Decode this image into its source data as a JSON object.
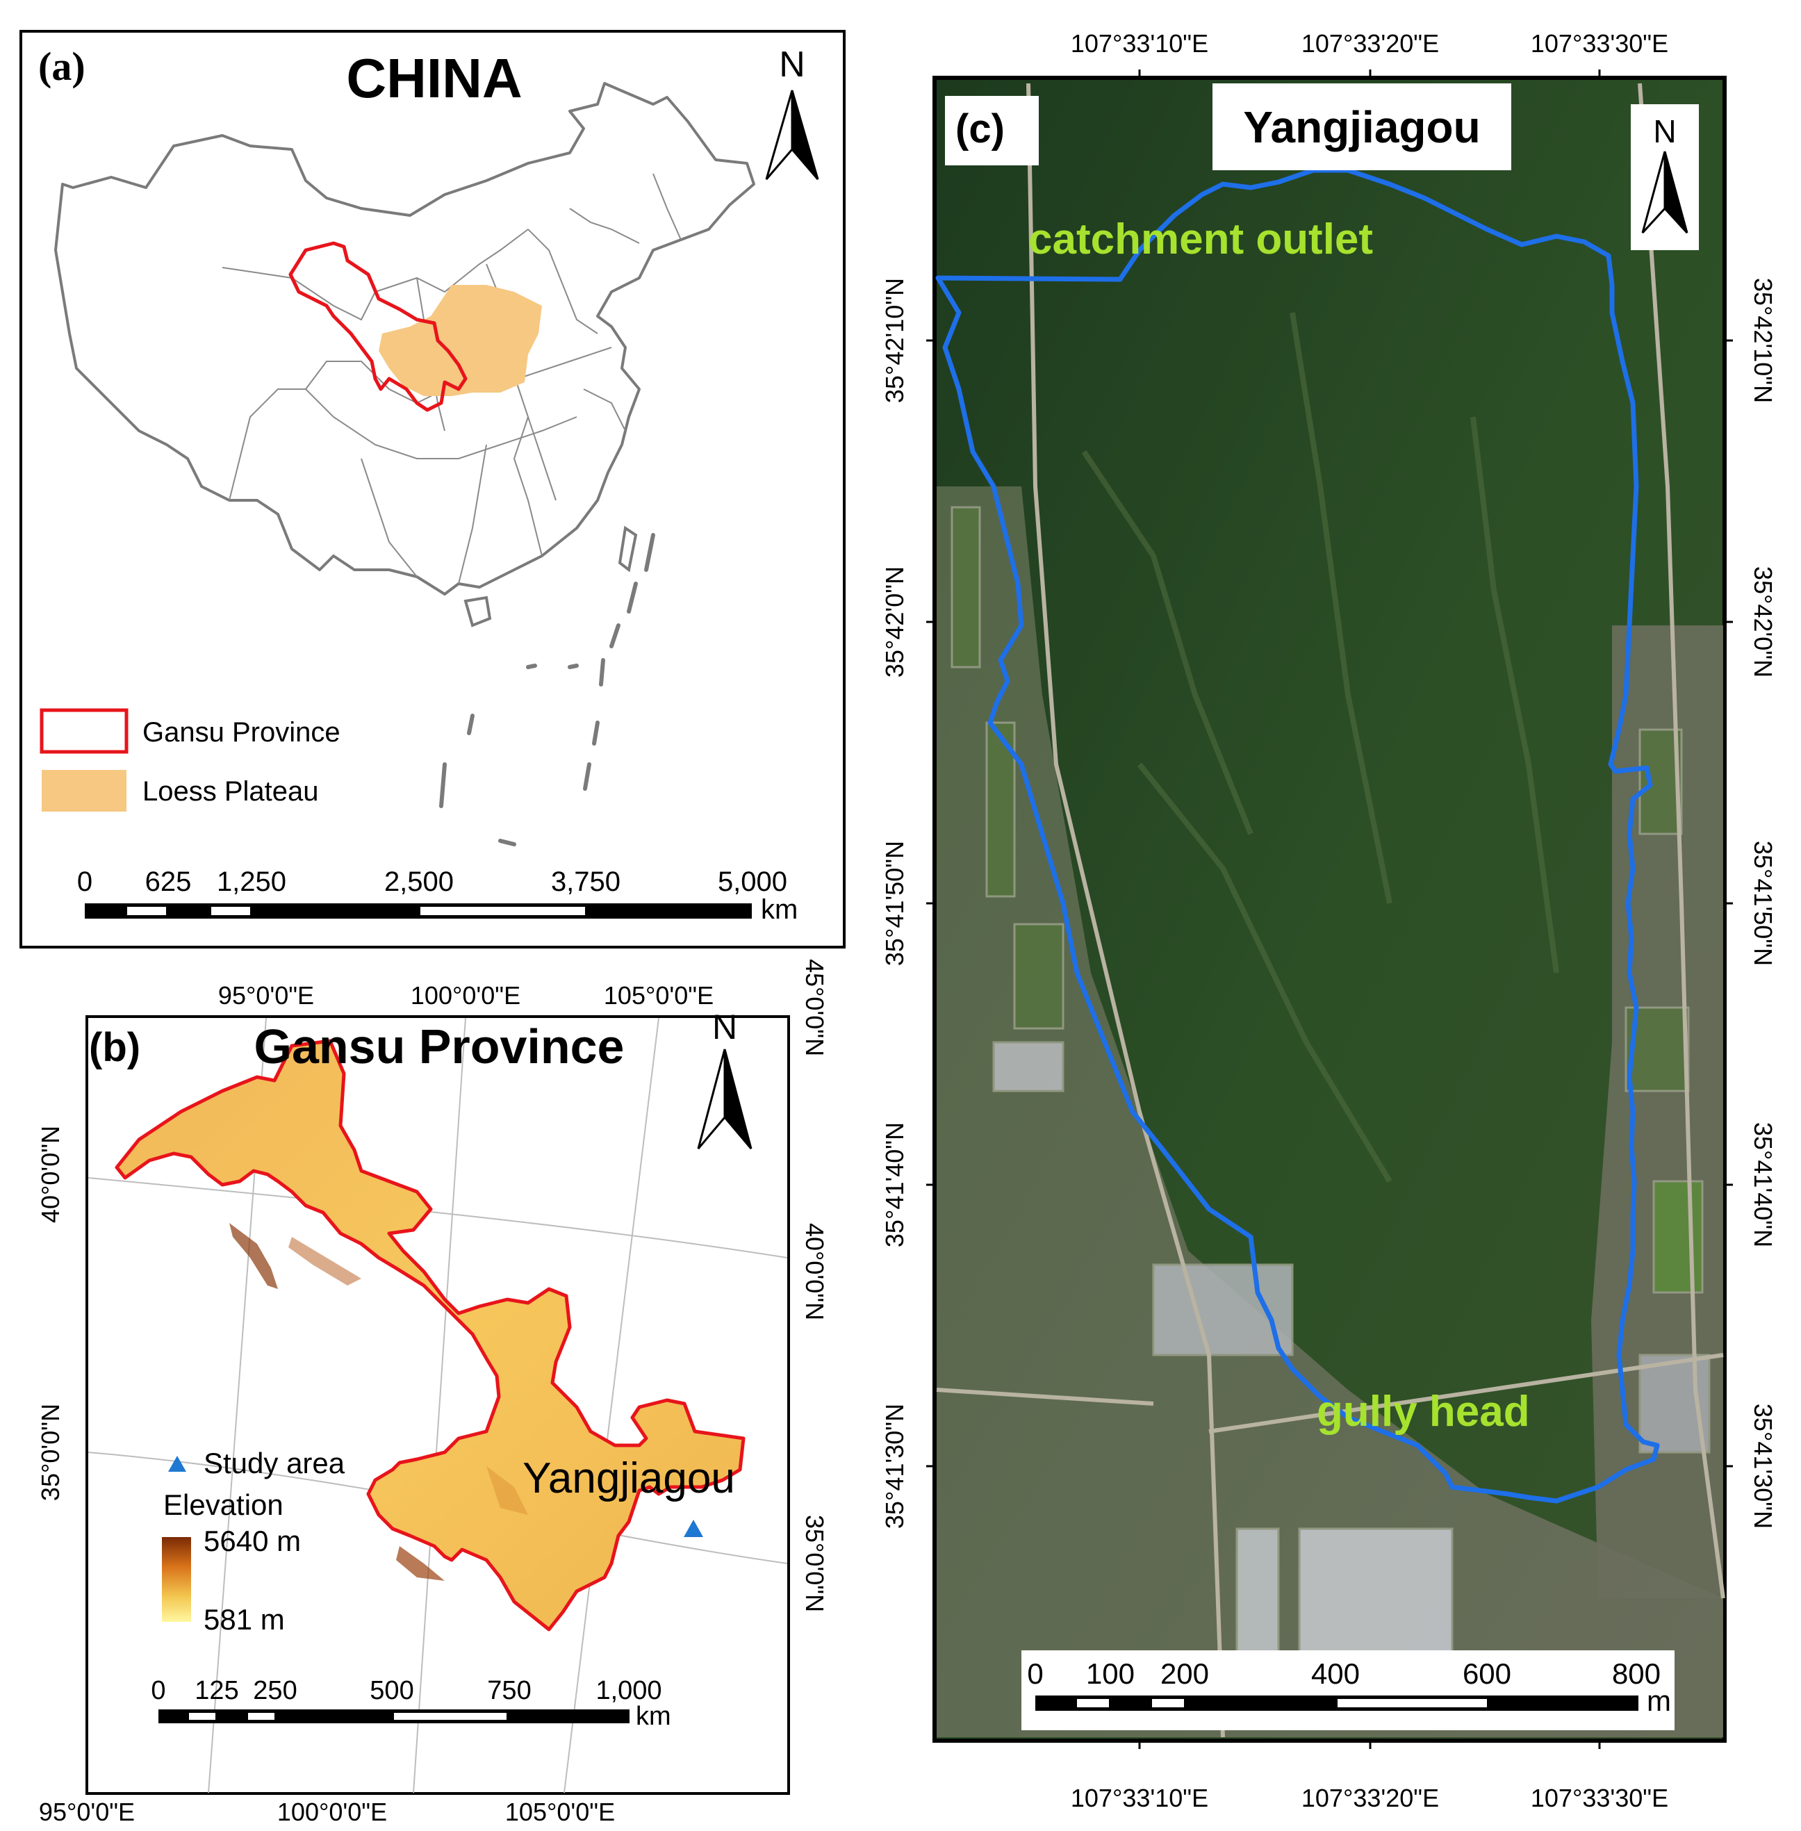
{
  "panel_a": {
    "label": "(a)",
    "title": "CHINA",
    "north": "N",
    "legend": {
      "gansu": "Gansu Province",
      "loess": "Loess Plateau"
    },
    "scale_ticks": [
      "0",
      "625",
      "1,250",
      "2,500",
      "3,750",
      "5,000"
    ],
    "scale_unit": "km",
    "colors": {
      "gansu_outline": "#e8141b",
      "loess_fill": "#f6c882",
      "country_border": "#7a7a7a"
    }
  },
  "panel_b": {
    "label": "(b)",
    "title": "Gansu Province",
    "north": "N",
    "top_lon_labels": [
      "95°0'0\"E",
      "100°0'0\"E",
      "105°0'0\"E"
    ],
    "bottom_lon_labels": [
      "95°0'0\"E",
      "100°0'0\"E",
      "105°0'0\"E"
    ],
    "left_lat_labels": [
      "40°0'0\"N",
      "35°0'0\"N"
    ],
    "right_lat_labels": [
      "45°0'0\"N",
      "40°0'0\"N",
      "35°0'0\"N"
    ],
    "study_area_label": "Study area",
    "site_name": "Yangjiagou",
    "elevation_title": "Elevation",
    "elevation_max": "5640 m",
    "elevation_min": "581 m",
    "scale_ticks": [
      "0",
      "125",
      "250",
      "500",
      "750",
      "1,000"
    ],
    "scale_unit": "km",
    "colors": {
      "elev_high": "#7a2a05",
      "elev_low": "#fff7a0",
      "outline": "#e8141b",
      "study_marker": "#1f78d1"
    }
  },
  "panel_c": {
    "label": "(c)",
    "title": "Yangjiagou",
    "north": "N",
    "outlet_label": "catchment outlet",
    "gully_label": "gully head",
    "top_lon_labels": [
      "107°33'10\"E",
      "107°33'20\"E",
      "107°33'30\"E"
    ],
    "bottom_lon_labels": [
      "107°33'10\"E",
      "107°33'20\"E",
      "107°33'30\"E"
    ],
    "left_lat_labels": [
      "35°42'10\"N",
      "35°42'0\"N",
      "35°41'50\"N",
      "35°41'40\"N",
      "35°41'30\"N"
    ],
    "right_lat_labels": [
      "35°42'10\"N",
      "35°42'0\"N",
      "35°41'50\"N",
      "35°41'40\"N",
      "35°41'30\"N"
    ],
    "scale_ticks": [
      "0",
      "100",
      "200",
      "400",
      "600",
      "800"
    ],
    "scale_unit": "m",
    "colors": {
      "boundary": "#1e6fe8",
      "label_green": "#a6e22e"
    }
  }
}
